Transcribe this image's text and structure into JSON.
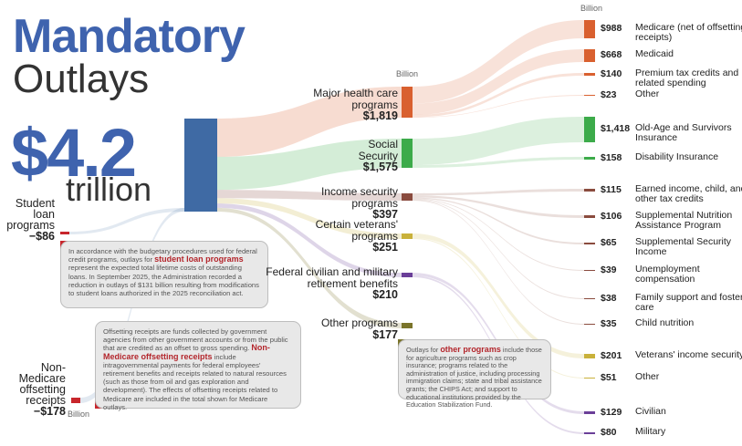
{
  "title": {
    "main": "Mandatory",
    "sub": "Outlays"
  },
  "total": {
    "value": "$4.2",
    "unit": "trillion"
  },
  "unit_labels": {
    "middle": "Billion",
    "right": "Billion",
    "left": "Billion"
  },
  "colors": {
    "total": "#3f6aa4",
    "health": "#d9602f",
    "social": "#3cab4a",
    "income": "#8a4b3e",
    "veterans": "#c9b13a",
    "federal": "#6a3e98",
    "other": "#7a742a",
    "negative": "#c8262c"
  },
  "negative_items": [
    {
      "label": "Student loan programs",
      "value": "−$86"
    },
    {
      "label": "Non-Medicare offsetting receipts",
      "value": "−$178"
    }
  ],
  "notes": {
    "student_loan": {
      "pre": "In accordance with the budgetary procedures used for federal credit programs, outlays for ",
      "highlight": "student loan programs",
      "post": " represent the expected total lifetime costs of outstanding loans. In September 2025, the Administration recorded a reduction in outlays of $131 billion resulting from modifications to student loans authorized in the 2025 reconciliation act."
    },
    "offsetting": {
      "pre": "Offsetting receipts are funds collected by government agencies from other government accounts or from the public that are credited as an offset to gross spending. ",
      "highlight": "Non-Medicare offsetting receipts",
      "post": " include intragovernmental payments for federal employees' retirement benefits and receipts related to natural resources (such as those from oil and gas exploration and development). The effects of offsetting receipts related to Medicare are included in the total shown for Medicare outlays."
    },
    "other_programs": {
      "pre": "Outlays for ",
      "highlight": "other programs",
      "post": " include those for agriculture programs such as crop insurance; programs related to the administration of justice, including processing immigration claims; state and tribal assistance grants; the CHIPS Act; and support to educational institutions provided by the Education Stabilization Fund."
    }
  },
  "chart_data": {
    "type": "sankey",
    "title": "Mandatory Outlays",
    "units": "Billion",
    "total": 4.2,
    "categories": [
      {
        "name": "Major health care programs",
        "value": 1819,
        "children": [
          {
            "name": "Medicare (net of offsetting receipts)",
            "value": 988
          },
          {
            "name": "Medicaid",
            "value": 668
          },
          {
            "name": "Premium tax credits and related spending",
            "value": 140
          },
          {
            "name": "Other",
            "value": 23
          }
        ]
      },
      {
        "name": "Social Security",
        "value": 1575,
        "children": [
          {
            "name": "Old-Age and Survivors Insurance",
            "value": 1418
          },
          {
            "name": "Disability Insurance",
            "value": 158
          }
        ]
      },
      {
        "name": "Income security programs",
        "value": 397,
        "children": [
          {
            "name": "Earned income, child, and other tax credits",
            "value": 115
          },
          {
            "name": "Supplemental Nutrition Assistance Program",
            "value": 106
          },
          {
            "name": "Supplemental Security Income",
            "value": 65
          },
          {
            "name": "Unemployment compensation",
            "value": 39
          },
          {
            "name": "Family support and foster care",
            "value": 38
          },
          {
            "name": "Child nutrition",
            "value": 35
          }
        ]
      },
      {
        "name": "Certain veterans' programs",
        "value": 251,
        "children": [
          {
            "name": "Veterans' income security",
            "value": 201
          },
          {
            "name": "Other",
            "value": 51
          }
        ]
      },
      {
        "name": "Federal civilian and military retirement benefits",
        "value": 210,
        "children": [
          {
            "name": "Civilian",
            "value": 129
          },
          {
            "name": "Military",
            "value": 80
          }
        ]
      },
      {
        "name": "Other programs",
        "value": 177,
        "children": []
      }
    ],
    "negative": [
      {
        "name": "Student loan programs",
        "value": -86
      },
      {
        "name": "Non-Medicare offsetting receipts",
        "value": -178
      }
    ]
  }
}
